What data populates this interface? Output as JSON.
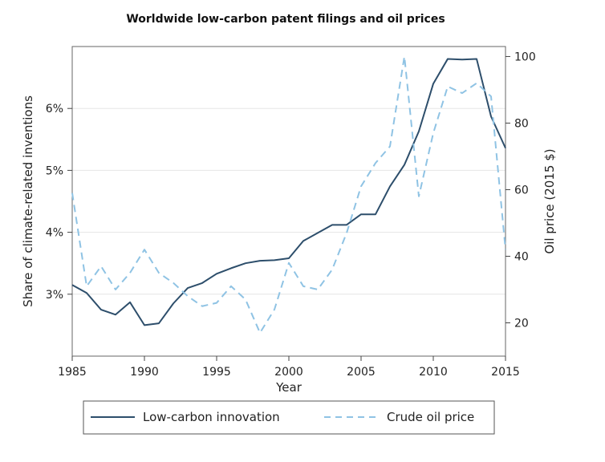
{
  "chart_data": {
    "type": "line",
    "title": "Worldwide low-carbon patent filings and oil prices",
    "xlabel": "Year",
    "ylabel_left": "Share of climate-related inventions",
    "ylabel_right": "Oil price (2015 $)",
    "xlim": [
      1985,
      2015
    ],
    "ylim_left": [
      2.0,
      7.0
    ],
    "ylim_right": [
      10,
      103
    ],
    "x_ticks": [
      "1985",
      "1990",
      "1995",
      "2000",
      "2005",
      "2010",
      "2015"
    ],
    "y_left_ticks": [
      "3%",
      "4%",
      "5%",
      "6%"
    ],
    "y_right_ticks": [
      "20",
      "40",
      "60",
      "80",
      "100"
    ],
    "grid": true,
    "legend_position": "bottom",
    "x": [
      1985,
      1986,
      1987,
      1988,
      1989,
      1990,
      1991,
      1992,
      1993,
      1994,
      1995,
      1996,
      1997,
      1998,
      1999,
      2000,
      2001,
      2002,
      2003,
      2004,
      2005,
      2006,
      2007,
      2008,
      2009,
      2010,
      2011,
      2012,
      2013,
      2014,
      2015
    ],
    "series": [
      {
        "name": "Low-carbon innovation",
        "axis": "left",
        "color": "#2d4e6b",
        "style": "solid",
        "values": [
          3.15,
          3.02,
          2.75,
          2.67,
          2.87,
          2.5,
          2.53,
          2.85,
          3.1,
          3.18,
          3.33,
          3.42,
          3.5,
          3.54,
          3.55,
          3.58,
          3.86,
          3.99,
          4.12,
          4.12,
          4.29,
          4.29,
          4.74,
          5.09,
          5.63,
          6.4,
          6.8,
          6.79,
          6.8,
          5.87,
          5.36
        ]
      },
      {
        "name": "Crude oil price",
        "axis": "right",
        "color": "#8fc3e4",
        "style": "dashed",
        "values": [
          59,
          31,
          37,
          30,
          35,
          42,
          35,
          32,
          28,
          25,
          26,
          31,
          27,
          17,
          24,
          38,
          31,
          30,
          36,
          47,
          61,
          68,
          73,
          100,
          58,
          77,
          91,
          89,
          92,
          88,
          42
        ]
      }
    ]
  }
}
